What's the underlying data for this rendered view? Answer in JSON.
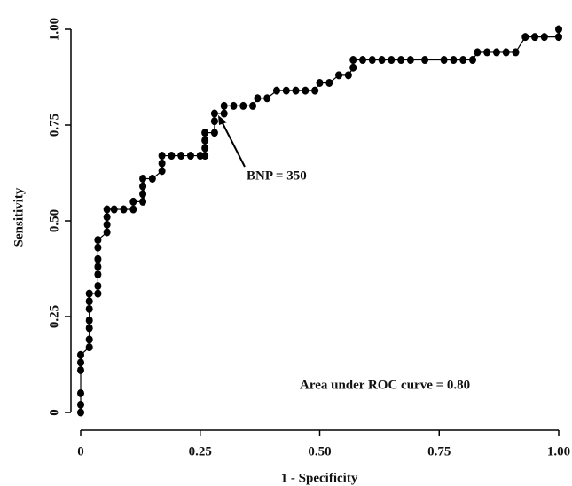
{
  "chart_data": {
    "type": "line",
    "x_label": "1 - Specificity",
    "y_label": "Sensitivity",
    "annotations": [
      "BNP = 350",
      "Area under ROC curve = 0.80"
    ],
    "color": "#000000",
    "x": [
      0,
      0,
      0,
      0,
      0,
      0,
      0.018,
      0.018,
      0.018,
      0.018,
      0.018,
      0.018,
      0.018,
      0.036,
      0.036,
      0.036,
      0.036,
      0.036,
      0.036,
      0.036,
      0.055,
      0.055,
      0.055,
      0.055,
      0.07,
      0.09,
      0.11,
      0.11,
      0.13,
      0.13,
      0.13,
      0.13,
      0.15,
      0.17,
      0.17,
      0.17,
      0.19,
      0.21,
      0.23,
      0.25,
      0.26,
      0.26,
      0.26,
      0.26,
      0.28,
      0.28,
      0.28,
      0.3,
      0.3,
      0.32,
      0.34,
      0.36,
      0.37,
      0.39,
      0.41,
      0.43,
      0.45,
      0.47,
      0.49,
      0.5,
      0.52,
      0.54,
      0.56,
      0.57,
      0.57,
      0.59,
      0.61,
      0.63,
      0.65,
      0.67,
      0.69,
      0.72,
      0.76,
      0.78,
      0.8,
      0.82,
      0.83,
      0.85,
      0.87,
      0.89,
      0.91,
      0.93,
      0.95,
      0.97,
      1,
      1
    ],
    "values": [
      0,
      0.02,
      0.05,
      0.11,
      0.13,
      0.15,
      0.17,
      0.19,
      0.22,
      0.24,
      0.27,
      0.29,
      0.31,
      0.31,
      0.33,
      0.36,
      0.38,
      0.4,
      0.43,
      0.45,
      0.47,
      0.49,
      0.51,
      0.53,
      0.53,
      0.53,
      0.53,
      0.55,
      0.55,
      0.57,
      0.59,
      0.61,
      0.61,
      0.63,
      0.65,
      0.67,
      0.67,
      0.67,
      0.67,
      0.67,
      0.67,
      0.69,
      0.71,
      0.73,
      0.73,
      0.76,
      0.78,
      0.78,
      0.8,
      0.8,
      0.8,
      0.8,
      0.82,
      0.82,
      0.84,
      0.84,
      0.84,
      0.84,
      0.84,
      0.86,
      0.86,
      0.88,
      0.88,
      0.9,
      0.92,
      0.92,
      0.92,
      0.92,
      0.92,
      0.92,
      0.92,
      0.92,
      0.92,
      0.92,
      0.92,
      0.92,
      0.94,
      0.94,
      0.94,
      0.94,
      0.94,
      0.98,
      0.98,
      0.98,
      0.98,
      1
    ],
    "xlim": [
      0,
      1
    ],
    "ylim": [
      0,
      1
    ],
    "xticks": [
      0,
      {
        "value": 0.25,
        "label": "0.25"
      },
      {
        "value": 0.5,
        "label": "0.50"
      },
      {
        "value": 0.75,
        "label": "0.75"
      },
      {
        "value": 1,
        "label": "1.00"
      }
    ],
    "yticks": [
      0,
      {
        "value": 0.25,
        "label": "0.25"
      },
      {
        "value": 0.5,
        "label": "0.50"
      },
      {
        "value": 0.75,
        "label": "0.75"
      },
      {
        "value": 1,
        "label": "1.00"
      }
    ]
  }
}
